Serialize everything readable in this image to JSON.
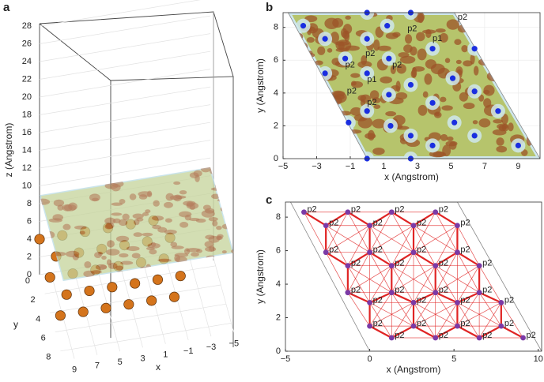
{
  "chart_data": [
    {
      "type": "scatter3d",
      "panel_label": "a",
      "xlabel": "x",
      "ylabel": "y",
      "zlabel": "z (Angstrom)",
      "xlim": [
        -5,
        10
      ],
      "ylim": [
        0,
        9
      ],
      "zlim": [
        0,
        28
      ],
      "xticks": [
        9,
        7,
        5,
        3,
        1,
        {
          "value": -1,
          "label": "−1"
        },
        {
          "value": -3,
          "label": "−3"
        },
        {
          "value": -5,
          "label": "−5"
        }
      ],
      "yticks": [
        0,
        2,
        4,
        6,
        8
      ],
      "zticks": [
        0,
        2,
        4,
        6,
        8,
        10,
        12,
        14,
        16,
        18,
        20,
        22,
        24,
        26,
        28
      ],
      "grid": true,
      "color": "#d4741c",
      "points": {
        "x": [
          10,
          8,
          6,
          4,
          2,
          0,
          9,
          7,
          5,
          3,
          1,
          -1,
          10,
          8,
          6,
          4,
          2,
          0,
          9,
          7,
          5,
          3,
          1,
          -1,
          10,
          8,
          6,
          4,
          2,
          0
        ],
        "y": [
          0,
          0,
          0,
          0,
          0,
          0,
          2,
          2,
          2,
          2,
          2,
          2,
          4,
          4,
          4,
          4,
          4,
          4,
          6,
          6,
          6,
          6,
          6,
          6,
          8,
          8,
          8,
          8,
          8,
          8
        ],
        "z": [
          4,
          4,
          4,
          4,
          4,
          4,
          4,
          4,
          4,
          4,
          4,
          4,
          4,
          4,
          4,
          4,
          4,
          4,
          4,
          4,
          4,
          4,
          4,
          4,
          4,
          4,
          4,
          4,
          4,
          4
        ]
      }
    },
    {
      "type": "density_map",
      "panel_label": "b",
      "xlabel": "x (Angstrom)",
      "ylabel": "y (Angstrom)",
      "xlim": [
        -5,
        10.3
      ],
      "ylim": [
        0,
        8.9
      ],
      "xticks": [
        {
          "value": -5,
          "label": "−5"
        },
        {
          "value": -3,
          "label": "−3"
        },
        {
          "value": -1,
          "label": "−1"
        },
        1,
        3,
        5,
        7,
        9
      ],
      "yticks": [
        0,
        2,
        4,
        6,
        8
      ],
      "grid": true,
      "region": {
        "x": [
          0,
          10.3,
          5.2,
          -4.7
        ],
        "y": [
          0,
          0,
          8.9,
          8.9
        ]
      },
      "region_color": "#b6c46c",
      "blob_color": "#9c5428",
      "halo_color": "#cfe7ec",
      "color": "#1a2ee0",
      "points": {
        "x": [
          0,
          2.6,
          -3.8,
          1.2,
          -2.5,
          0,
          3.9,
          6.4,
          1.3,
          -1.3,
          -2.5,
          0,
          2.6,
          5.1,
          1.3,
          6.4,
          3.9,
          0,
          -1.1,
          7.8,
          5.2,
          1.4,
          2.6,
          3.9,
          6.4,
          9.0,
          0,
          2.6
        ],
        "y": [
          8.9,
          8.9,
          8.1,
          8.1,
          7.3,
          7.3,
          6.7,
          6.7,
          6.1,
          6.1,
          5.2,
          5.2,
          4.5,
          4.9,
          3.9,
          4.1,
          3.4,
          2.9,
          2.2,
          2.9,
          2.2,
          2.0,
          1.4,
          0.8,
          1.4,
          0.8,
          0,
          0
        ]
      },
      "annotations": [
        {
          "text": "p2",
          "x": 5.4,
          "y": 8.6
        },
        {
          "text": "p2",
          "x": 2.4,
          "y": 7.9
        },
        {
          "text": "p1",
          "x": 3.9,
          "y": 7.3
        },
        {
          "text": "p2",
          "x": -0.1,
          "y": 6.4
        },
        {
          "text": "p2",
          "x": -1.3,
          "y": 5.7
        },
        {
          "text": "p2",
          "x": 1.5,
          "y": 5.7
        },
        {
          "text": "p1",
          "x": 0,
          "y": 4.8
        },
        {
          "text": "p2",
          "x": -1.2,
          "y": 4.1
        },
        {
          "text": "p2",
          "x": 0,
          "y": 3.4
        }
      ]
    },
    {
      "type": "network",
      "panel_label": "c",
      "xlabel": "x (Angstrom)",
      "ylabel": "y (Angstrom)",
      "xlim": [
        -5,
        10.2
      ],
      "ylim": [
        0,
        8.9
      ],
      "xticks": [
        {
          "value": -5,
          "label": "−5"
        },
        0,
        5,
        10
      ],
      "yticks": [
        0,
        2,
        4,
        6,
        8
      ],
      "color": "#e02424",
      "node_color": "#7b3aa6",
      "cell": {
        "x": [
          0,
          10.2,
          5.2,
          -4.7
        ],
        "y": [
          0,
          0,
          8.9,
          8.9
        ]
      },
      "nodes": {
        "x": [
          -3.9,
          -1.3,
          1.3,
          3.9,
          -2.6,
          0,
          2.6,
          5.2,
          -2.6,
          0,
          2.6,
          5.2,
          -1.3,
          1.3,
          3.9,
          6.5,
          -1.3,
          1.3,
          3.9,
          6.5,
          0,
          2.6,
          5.2,
          7.8,
          0,
          2.6,
          5.2,
          7.8,
          1.3,
          3.9,
          6.5,
          9.1
        ],
        "y": [
          8.3,
          8.3,
          8.3,
          8.3,
          7.5,
          7.5,
          7.5,
          7.5,
          5.9,
          5.9,
          5.9,
          5.9,
          5.1,
          5.1,
          5.1,
          5.1,
          3.5,
          3.5,
          3.5,
          3.5,
          2.9,
          2.9,
          2.9,
          2.9,
          1.5,
          1.5,
          1.5,
          1.5,
          0.8,
          0.8,
          0.8,
          0.8
        ]
      },
      "labels": [
        "p2",
        "p2",
        "p2",
        "p2",
        "p2",
        "p2",
        "p2",
        "p2",
        "p2",
        "p2",
        "p2",
        "p2",
        "p2",
        "p2",
        "p2",
        "p2",
        "p2",
        "p2",
        "p2",
        "p2",
        "p2",
        "p2",
        "p2",
        "p2",
        "p2",
        "p2",
        "p2",
        "p2",
        "p2",
        "p2",
        "p2",
        "p2"
      ]
    }
  ]
}
